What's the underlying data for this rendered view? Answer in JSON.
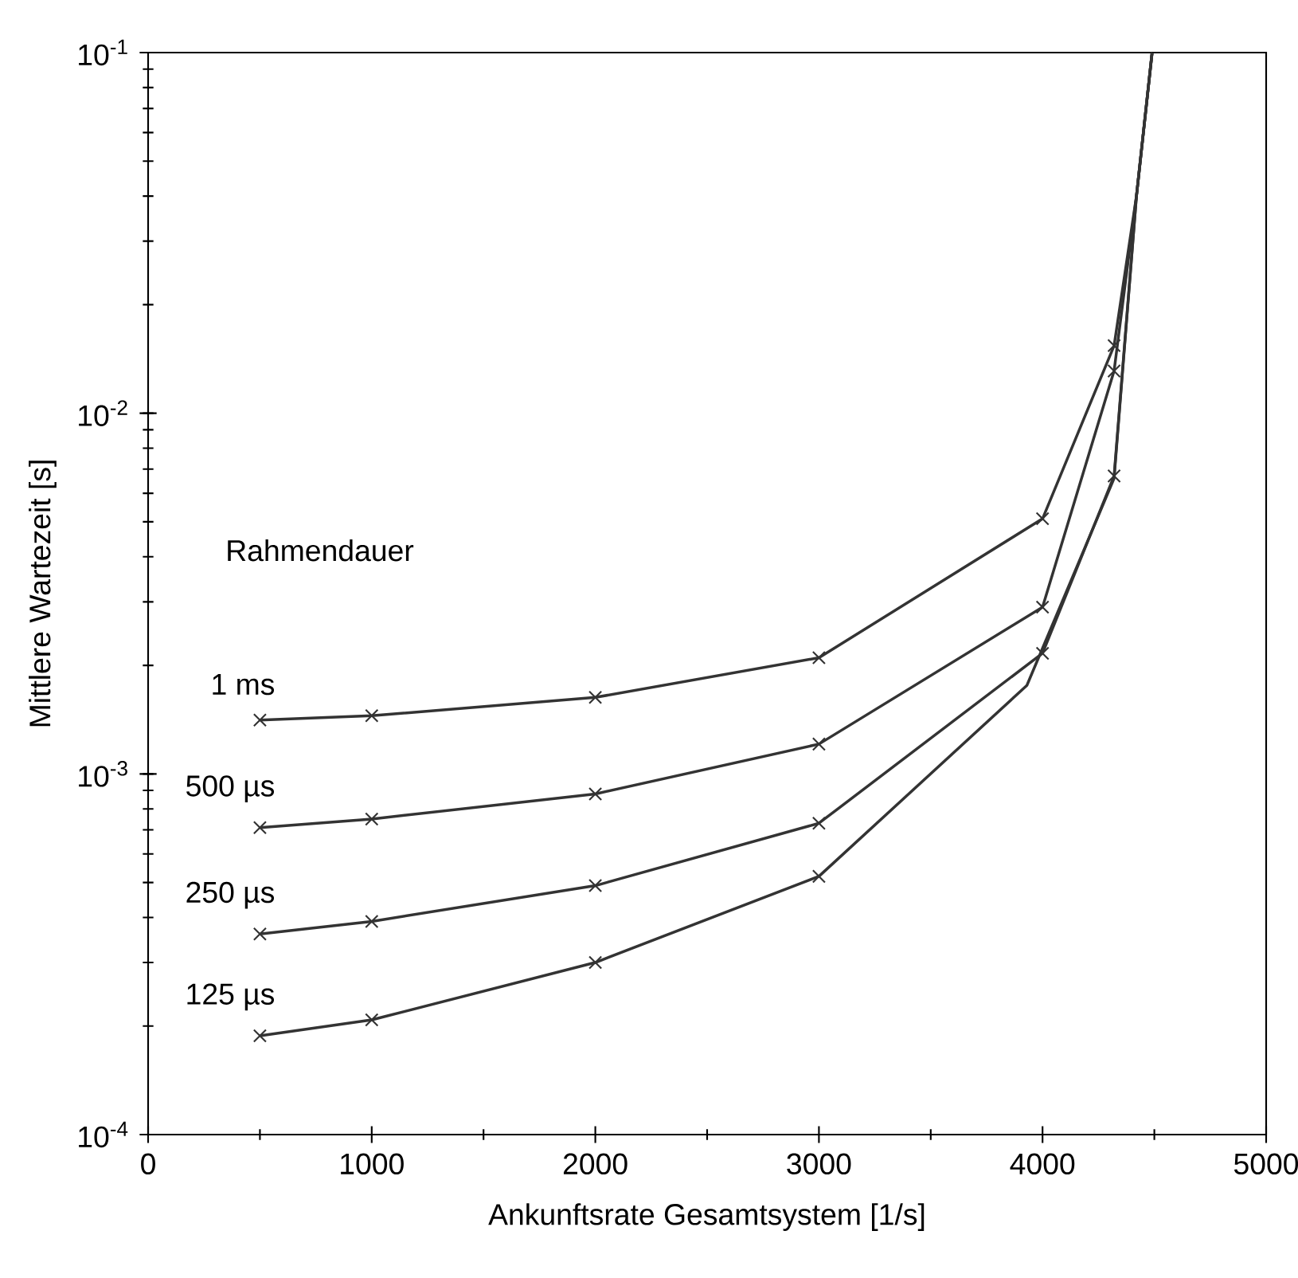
{
  "chart_data": {
    "type": "line",
    "xlabel": "Ankunftsrate  Gesamtsystem [1/s]",
    "ylabel": "Mittlere Wartezeit [s]",
    "legend_title": "Rahmendauer",
    "log": "y",
    "marker": "none",
    "xlim": [
      0,
      5000
    ],
    "ylim": [
      0.0001,
      0.1
    ],
    "xticks": [
      0,
      1000,
      2000,
      3000,
      4000,
      5000
    ],
    "yticks": [
      {
        "value": 0.0001,
        "label": "10$^{-4}$"
      },
      {
        "value": 0.001,
        "label": "10$^{-3}$"
      },
      {
        "value": 0.01,
        "label": "10$^{-2}$"
      },
      {
        "value": 0.1,
        "label": "10$^{-1}$"
      }
    ],
    "series": [
      {
        "name": "1 ms",
        "color": "#333333",
        "x": [
          500,
          1000,
          2000,
          3000,
          4000,
          4320,
          4420,
          4490
        ],
        "values": [
          0.00141,
          0.00145,
          0.00163,
          0.0021,
          0.0051,
          0.0154,
          0.04,
          0.1
        ]
      },
      {
        "name": "500 µs",
        "color": "#333333",
        "x": [
          500,
          1000,
          2000,
          3000,
          4000,
          4320,
          4420,
          4490
        ],
        "values": [
          0.00071,
          0.00075,
          0.00088,
          0.00121,
          0.0029,
          0.0131,
          0.04,
          0.1
        ]
      },
      {
        "name": "250 µs",
        "color": "#333333",
        "x": [
          500,
          1000,
          2000,
          3000,
          4000,
          4320,
          4420,
          4490
        ],
        "values": [
          0.00036,
          0.00039,
          0.00049,
          0.00073,
          0.00216,
          0.0067,
          0.04,
          0.1
        ]
      },
      {
        "name": "125 µs",
        "color": "#333333",
        "x": [
          500,
          1000,
          2000,
          3000,
          3930,
          4320,
          4420,
          4490
        ],
        "values": [
          0.000188,
          0.000208,
          0.0003,
          0.00052,
          0.00176,
          0.0066,
          0.04,
          0.1
        ]
      },
      {
        "type": "scatter",
        "marker": "cross",
        "color": "#333333",
        "x": [
          500,
          1000,
          2000,
          3000,
          4000,
          4320
        ],
        "values": [
          0.00141,
          0.00145,
          0.00163,
          0.0021,
          0.0051,
          0.0154
        ]
      },
      {
        "type": "scatter",
        "marker": "cross",
        "color": "#333333",
        "x": [
          500,
          1000,
          2000,
          3000,
          4000,
          4320
        ],
        "values": [
          0.00071,
          0.00075,
          0.00088,
          0.00121,
          0.0029,
          0.0131
        ]
      },
      {
        "type": "scatter",
        "marker": "cross",
        "color": "#333333",
        "x": [
          500,
          1000,
          2000,
          3000,
          4000,
          4320
        ],
        "values": [
          0.00036,
          0.00039,
          0.00049,
          0.00073,
          0.00216,
          0.0067
        ]
      },
      {
        "type": "scatter",
        "marker": "cross",
        "color": "#333333",
        "x": [
          500,
          1000,
          2000,
          3000
        ],
        "values": [
          0.000188,
          0.000208,
          0.0003,
          0.00052
        ]
      }
    ]
  }
}
